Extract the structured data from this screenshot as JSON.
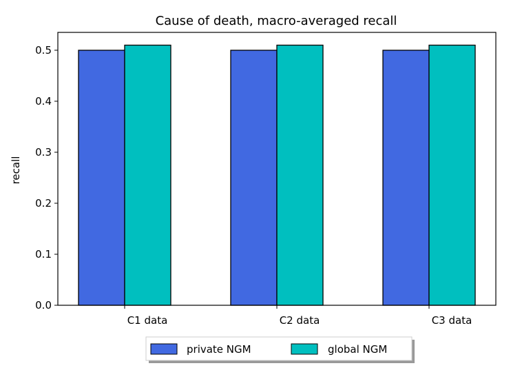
{
  "chart_data": {
    "type": "bar",
    "title": "Cause of death, macro-averaged recall",
    "xlabel": "",
    "ylabel": "recall",
    "categories": [
      "C1 data",
      "C2 data",
      "C3 data"
    ],
    "series": [
      {
        "name": "private NGM",
        "values": [
          0.5,
          0.5,
          0.5
        ],
        "color": "#4169e1"
      },
      {
        "name": "global NGM",
        "values": [
          0.51,
          0.51,
          0.51
        ],
        "color": "#00bfbf"
      }
    ],
    "ylim": [
      0,
      0.535
    ],
    "yticks": [
      "0.0",
      "0.1",
      "0.2",
      "0.3",
      "0.4",
      "0.5"
    ],
    "grid": false,
    "legend_position": "bottom"
  }
}
